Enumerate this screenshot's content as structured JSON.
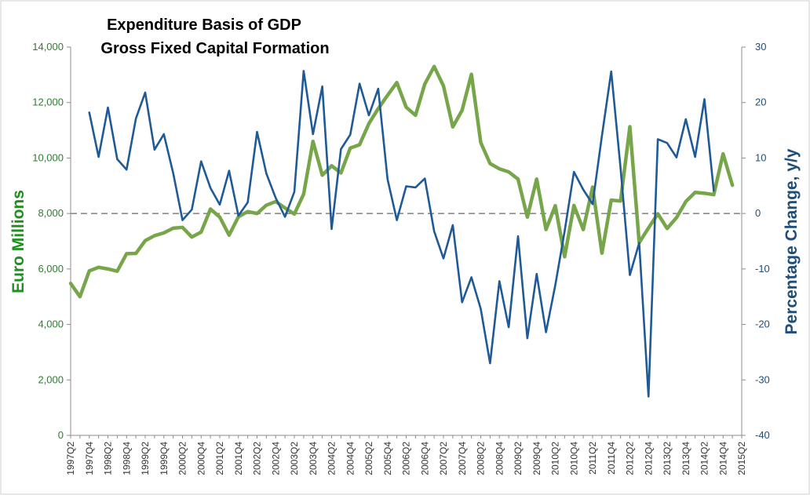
{
  "chart_data": {
    "type": "line",
    "title": "Expenditure Basis of GDP",
    "subtitle": "Gross Fixed Capital Formation",
    "ylabel_left": "Euro Millions",
    "ylabel_right": "Percentage Change, y/y",
    "ylim_left": [
      0,
      14000
    ],
    "ylim_right": [
      -40,
      30
    ],
    "yticks_left": [
      "0",
      "2,000",
      "4,000",
      "6,000",
      "8,000",
      "10,000",
      "12,000",
      "14,000"
    ],
    "yticks_left_values": [
      0,
      2000,
      4000,
      6000,
      8000,
      10000,
      12000,
      14000
    ],
    "yticks_right": [
      "-40",
      "-30",
      "-20",
      "-10",
      "0",
      "10",
      "20",
      "30"
    ],
    "yticks_right_values": [
      -40,
      -30,
      -20,
      -10,
      0,
      10,
      20,
      30
    ],
    "reference_line": {
      "axis": "right",
      "value": 0,
      "style": "dashed"
    },
    "categories": [
      "1997Q2",
      "1997Q3",
      "1997Q4",
      "1998Q1",
      "1998Q2",
      "1998Q3",
      "1998Q4",
      "1999Q1",
      "1999Q2",
      "1999Q3",
      "1999Q4",
      "2000Q1",
      "2000Q2",
      "2000Q3",
      "2000Q4",
      "2001Q1",
      "2001Q2",
      "2001Q3",
      "2001Q4",
      "2002Q1",
      "2002Q2",
      "2002Q3",
      "2002Q4",
      "2003Q1",
      "2003Q2",
      "2003Q3",
      "2003Q4",
      "2004Q1",
      "2004Q2",
      "2004Q3",
      "2004Q4",
      "2005Q1",
      "2005Q2",
      "2005Q3",
      "2005Q4",
      "2006Q1",
      "2006Q2",
      "2006Q3",
      "2006Q4",
      "2007Q1",
      "2007Q2",
      "2007Q3",
      "2007Q4",
      "2008Q1",
      "2008Q2",
      "2008Q3",
      "2008Q4",
      "2009Q1",
      "2009Q2",
      "2009Q3",
      "2009Q4",
      "2010Q1",
      "2010Q2",
      "2010Q3",
      "2010Q4",
      "2011Q1",
      "2011Q2",
      "2011Q3",
      "2011Q4",
      "2012Q1",
      "2012Q2",
      "2012Q3",
      "2012Q4",
      "2013Q1",
      "2013Q2",
      "2013Q3",
      "2013Q4",
      "2014Q1",
      "2014Q2",
      "2014Q3",
      "2014Q4",
      "2015Q1",
      "2015Q2"
    ],
    "xtick_labels": [
      "1997Q2",
      "1997Q4",
      "1998Q2",
      "1998Q4",
      "1999Q2",
      "1999Q4",
      "2000Q2",
      "2000Q4",
      "2001Q2",
      "2001Q4",
      "2002Q2",
      "2002Q4",
      "2003Q2",
      "2003Q4",
      "2004Q2",
      "2004Q4",
      "2005Q2",
      "2005Q4",
      "2006Q2",
      "2006Q4",
      "2007Q2",
      "2007Q4",
      "2008Q2",
      "2008Q4",
      "2009Q2",
      "2009Q4",
      "2010Q2",
      "2010Q4",
      "2011Q2",
      "2011Q4",
      "2012Q2",
      "2012Q4",
      "2013Q2",
      "2013Q4",
      "2014Q2",
      "2014Q4",
      "2015Q2"
    ],
    "series": [
      {
        "name": "Euro Millions",
        "axis": "left",
        "color": "#77a54a",
        "values": [
          5480,
          5000,
          5930,
          6060,
          6000,
          5920,
          6550,
          6560,
          7020,
          7200,
          7300,
          7470,
          7500,
          7150,
          7330,
          8160,
          7870,
          7220,
          7880,
          8070,
          8000,
          8300,
          8430,
          8200,
          7980,
          8700,
          10600,
          9380,
          9720,
          9460,
          10360,
          10480,
          11240,
          11780,
          12260,
          12720,
          11830,
          11540,
          12670,
          13300,
          12600,
          11120,
          11720,
          13020,
          10560,
          9800,
          9610,
          9500,
          9240,
          7870,
          9240,
          7420,
          8280,
          6440,
          8290,
          7420,
          8950,
          6570,
          8480,
          8450,
          11130,
          6950,
          7480,
          7990,
          7460,
          7850,
          8430,
          8760,
          8730,
          8680,
          10150,
          9020,
          null
        ]
      },
      {
        "name": "Percentage Change, y/y",
        "axis": "right",
        "color": "#1f5a96",
        "values": [
          null,
          null,
          18.2,
          10.2,
          19.1,
          9.8,
          7.9,
          17.1,
          21.8,
          11.5,
          14.3,
          7.3,
          -1.2,
          0.7,
          9.4,
          4.6,
          1.6,
          7.7,
          -0.4,
          2.0,
          14.7,
          7.2,
          2.8,
          -0.6,
          3.9,
          25.7,
          14.3,
          22.9,
          -2.8,
          11.6,
          14.2,
          23.4,
          17.7,
          22.5,
          6.2,
          -1.2,
          4.9,
          4.7,
          6.3,
          -3.2,
          -8.1,
          -2.1,
          -16.0,
          -11.5,
          -17.2,
          -27.0,
          -12.2,
          -20.5,
          -4.1,
          -22.5,
          -10.9,
          -21.4,
          -12.9,
          -3.2,
          7.5,
          4.3,
          1.7,
          14.0,
          25.6,
          8.2,
          -11.1,
          -5.3,
          -33.0,
          13.4,
          12.7,
          10.1,
          17.0,
          10.2,
          20.6,
          4.1,
          null,
          null,
          null
        ]
      }
    ]
  }
}
